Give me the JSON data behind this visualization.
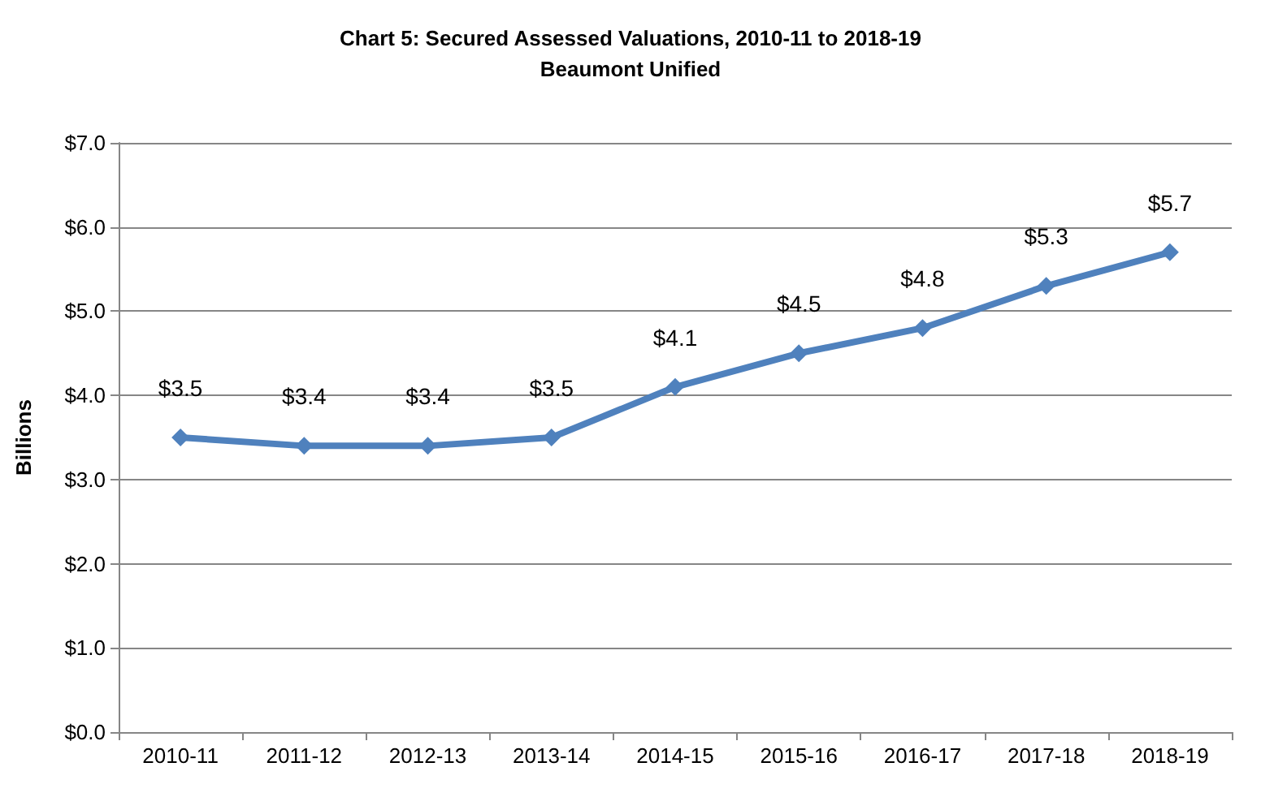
{
  "chart_data": {
    "type": "line",
    "title": "Chart 5: Secured Assessed Valuations, 2010-11 to 2018-19",
    "subtitle": "Beaumont Unified",
    "ylabel": "Billions",
    "categories": [
      "2010-11",
      "2011-12",
      "2012-13",
      "2013-14",
      "2014-15",
      "2015-16",
      "2016-17",
      "2017-18",
      "2018-19"
    ],
    "series": [
      {
        "color": "#4f81bd",
        "values": [
          3.5,
          3.4,
          3.4,
          3.5,
          4.1,
          4.5,
          4.8,
          5.3,
          5.7
        ],
        "value_labels": [
          "$3.5",
          "$3.4",
          "$3.4",
          "$3.5",
          "$4.1",
          "$4.5",
          "$4.8",
          "$5.3",
          "$5.7"
        ]
      }
    ],
    "ylim": [
      0,
      7
    ],
    "yticks": [
      {
        "value": 0,
        "label": "$0.0"
      },
      {
        "value": 1,
        "label": "$1.0"
      },
      {
        "value": 2,
        "label": "$2.0"
      },
      {
        "value": 3,
        "label": "$3.0"
      },
      {
        "value": 4,
        "label": "$4.0"
      },
      {
        "value": 5,
        "label": "$5.0"
      },
      {
        "value": 6,
        "label": "$6.0"
      },
      {
        "value": 7,
        "label": "$7.0"
      }
    ],
    "grid": "y",
    "marker": "diamond",
    "line_style": "solid"
  }
}
